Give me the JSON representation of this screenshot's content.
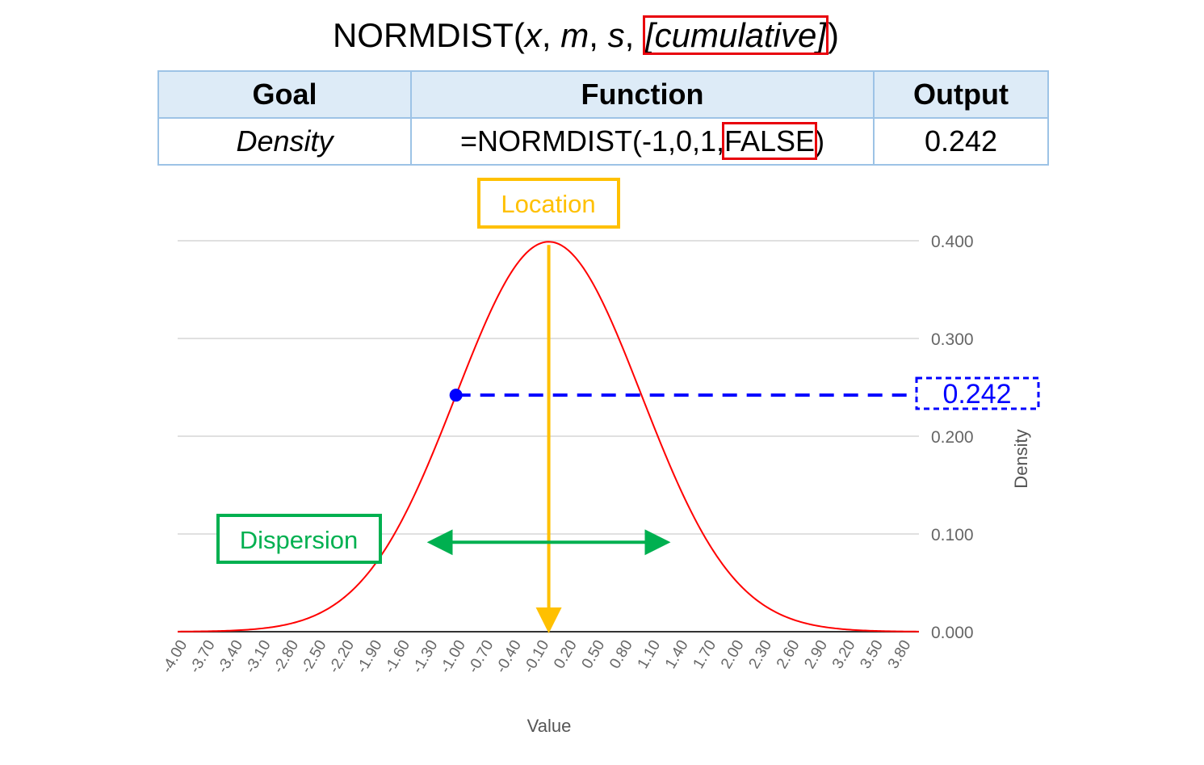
{
  "syntax": {
    "fn": "NORMDIST(",
    "x": "x",
    "m": "m",
    "s": "s",
    "sep": ", ",
    "cumulative": "[cumulative]",
    "close": ")"
  },
  "table": {
    "headers": [
      "Goal",
      "Function",
      "Output"
    ],
    "row": {
      "goal": "Density",
      "function_prefix": "=NORMDIST(-1,0,1,",
      "function_flag": "FALSE",
      "function_suffix": ")",
      "output": "0.242"
    }
  },
  "annotations": {
    "location": "Location",
    "dispersion": "Dispersion",
    "density_value": "0.242"
  },
  "colors": {
    "curve": "#ff0000",
    "location": "#ffc000",
    "dispersion": "#00b050",
    "density_marker": "#0000ff",
    "flag_box": "#e8000b",
    "grid": "#e0e0e0"
  },
  "chart_data": {
    "type": "line",
    "series": [
      {
        "function": "normal density",
        "mean": 0,
        "sd": 1
      }
    ],
    "x_tick_labels": [
      "-4.00",
      "-3.70",
      "-3.40",
      "-3.10",
      "-2.80",
      "-2.50",
      "-2.20",
      "-1.90",
      "-1.60",
      "-1.30",
      "-1.00",
      "-0.70",
      "-0.40",
      "-0.10",
      "0.20",
      "0.50",
      "0.80",
      "1.10",
      "1.40",
      "1.70",
      "2.00",
      "2.30",
      "2.60",
      "2.90",
      "3.20",
      "3.50",
      "3.80"
    ],
    "x_range": [
      -4.0,
      3.99
    ],
    "y_ticks": [
      "0.000",
      "0.100",
      "0.200",
      "0.300",
      "0.400"
    ],
    "ylim": [
      0,
      0.4
    ],
    "xlabel": "Value",
    "ylabel": "Density",
    "highlight_point": {
      "x": -1.0,
      "y": 0.242
    },
    "location_x": 0,
    "dispersion_range": [
      -1,
      1
    ],
    "grid": true,
    "y_axis_side": "right"
  }
}
